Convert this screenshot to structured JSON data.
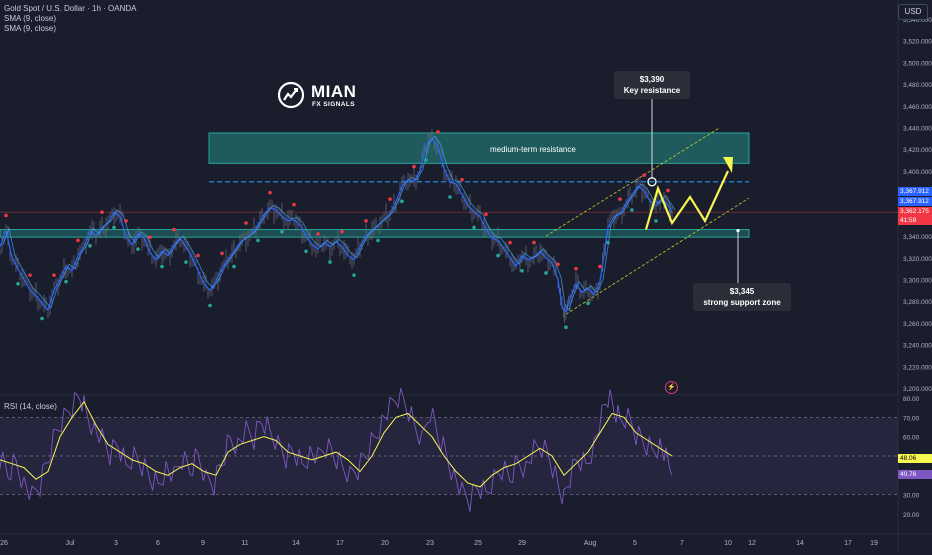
{
  "header": {
    "symbol_line": "Gold Spot / U.S. Dollar · 1h · OANDA",
    "indicators": [
      "SMA (9, close)",
      "SMA (9, close)"
    ]
  },
  "currency_button": "USD",
  "watermark": {
    "title": "MIAN",
    "subtitle": "FX SIGNALS"
  },
  "annotations": {
    "resistance_price": "$3,390",
    "resistance_label": "Key resistance",
    "zone_label": "medium-term resistance",
    "support_price": "$3,345",
    "support_label": "strong support zone"
  },
  "price_tags": [
    {
      "text": "3,367.912",
      "bg": "#2962ff",
      "fg": "#ffffff"
    },
    {
      "text": "3,367.912",
      "bg": "#2962ff",
      "fg": "#ffffff"
    },
    {
      "text": "3,362.175",
      "bg": "#f23645",
      "fg": "#ffffff"
    },
    {
      "text": "41:59",
      "bg": "#f23645",
      "fg": "#ffffff"
    }
  ],
  "rsi_tags": [
    {
      "text": "48.06",
      "bg": "#f7f752",
      "fg": "#000000"
    },
    {
      "text": "40.76",
      "bg": "#7e57c2",
      "fg": "#ffffff"
    }
  ],
  "rsi_label": "RSI (14, close)",
  "colors": {
    "background": "#1a1e2c",
    "zone_fill": "#26a69a",
    "dashed_line": "#2196f3",
    "projection": "#f7f752",
    "sma_blue": "#2962ff",
    "rsi_line": "#7e57c2",
    "rsi_ma": "#f7f752"
  },
  "chart_data": [
    {
      "type": "line",
      "title": "Gold Spot / U.S. Dollar · 1h · OANDA",
      "x_ticks": [
        "26",
        "Jul",
        "3",
        "6",
        "9",
        "11",
        "14",
        "17",
        "20",
        "23",
        "25",
        "29",
        "Aug",
        "5",
        "7",
        "10",
        "12",
        "14",
        "17",
        "19"
      ],
      "y_ticks": [
        "3,540.000",
        "3,520.000",
        "3,500.000",
        "3,480.000",
        "3,460.000",
        "3,440.000",
        "3,420.000",
        "3,400.000",
        "3,380.000",
        "3,360.000",
        "3,340.000",
        "3,320.000",
        "3,300.000",
        "3,280.000",
        "3,260.000",
        "3,240.000",
        "3,220.000",
        "3,200.000"
      ],
      "ylim": [
        3190,
        3550
      ],
      "price_series": {
        "name": "XAUUSD 1h",
        "points": [
          [
            0,
            3330
          ],
          [
            6,
            3345
          ],
          [
            12,
            3320
          ],
          [
            18,
            3310
          ],
          [
            24,
            3300
          ],
          [
            30,
            3290
          ],
          [
            36,
            3285
          ],
          [
            42,
            3278
          ],
          [
            48,
            3272
          ],
          [
            54,
            3290
          ],
          [
            60,
            3300
          ],
          [
            66,
            3312
          ],
          [
            72,
            3308
          ],
          [
            78,
            3322
          ],
          [
            84,
            3330
          ],
          [
            90,
            3345
          ],
          [
            96,
            3340
          ],
          [
            102,
            3348
          ],
          [
            108,
            3352
          ],
          [
            114,
            3362
          ],
          [
            120,
            3358
          ],
          [
            126,
            3340
          ],
          [
            132,
            3332
          ],
          [
            138,
            3342
          ],
          [
            144,
            3338
          ],
          [
            150,
            3325
          ],
          [
            156,
            3318
          ],
          [
            162,
            3326
          ],
          [
            168,
            3322
          ],
          [
            174,
            3332
          ],
          [
            180,
            3338
          ],
          [
            186,
            3330
          ],
          [
            192,
            3320
          ],
          [
            198,
            3308
          ],
          [
            204,
            3296
          ],
          [
            210,
            3290
          ],
          [
            216,
            3298
          ],
          [
            222,
            3310
          ],
          [
            228,
            3318
          ],
          [
            234,
            3326
          ],
          [
            240,
            3334
          ],
          [
            246,
            3338
          ],
          [
            252,
            3342
          ],
          [
            258,
            3350
          ],
          [
            264,
            3360
          ],
          [
            270,
            3366
          ],
          [
            276,
            3364
          ],
          [
            282,
            3358
          ],
          [
            288,
            3354
          ],
          [
            294,
            3355
          ],
          [
            300,
            3350
          ],
          [
            306,
            3340
          ],
          [
            312,
            3332
          ],
          [
            318,
            3328
          ],
          [
            324,
            3334
          ],
          [
            330,
            3330
          ],
          [
            336,
            3335
          ],
          [
            342,
            3330
          ],
          [
            348,
            3322
          ],
          [
            354,
            3318
          ],
          [
            360,
            3330
          ],
          [
            366,
            3340
          ],
          [
            372,
            3345
          ],
          [
            378,
            3350
          ],
          [
            384,
            3355
          ],
          [
            390,
            3360
          ],
          [
            396,
            3372
          ],
          [
            402,
            3386
          ],
          [
            408,
            3392
          ],
          [
            414,
            3390
          ],
          [
            420,
            3400
          ],
          [
            426,
            3424
          ],
          [
            432,
            3430
          ],
          [
            438,
            3422
          ],
          [
            444,
            3402
          ],
          [
            450,
            3390
          ],
          [
            456,
            3388
          ],
          [
            462,
            3378
          ],
          [
            468,
            3368
          ],
          [
            474,
            3362
          ],
          [
            480,
            3358
          ],
          [
            486,
            3346
          ],
          [
            492,
            3338
          ],
          [
            498,
            3336
          ],
          [
            504,
            3328
          ],
          [
            510,
            3320
          ],
          [
            516,
            3312
          ],
          [
            522,
            3322
          ],
          [
            528,
            3318
          ],
          [
            534,
            3320
          ],
          [
            540,
            3326
          ],
          [
            546,
            3320
          ],
          [
            552,
            3315
          ],
          [
            558,
            3300
          ],
          [
            562,
            3275
          ],
          [
            566,
            3270
          ],
          [
            570,
            3282
          ],
          [
            576,
            3296
          ],
          [
            582,
            3288
          ],
          [
            588,
            3292
          ],
          [
            594,
            3286
          ],
          [
            600,
            3298
          ],
          [
            604,
            3322
          ],
          [
            608,
            3348
          ],
          [
            614,
            3358
          ],
          [
            620,
            3360
          ],
          [
            626,
            3370
          ],
          [
            632,
            3378
          ],
          [
            638,
            3386
          ],
          [
            644,
            3382
          ],
          [
            650,
            3372
          ],
          [
            656,
            3368
          ],
          [
            662,
            3375
          ],
          [
            668,
            3368
          ],
          [
            672,
            3362
          ]
        ]
      },
      "projection": [
        [
          646,
          3346
        ],
        [
          658,
          3384
        ],
        [
          672,
          3352
        ],
        [
          690,
          3376
        ],
        [
          705,
          3354
        ],
        [
          728,
          3400
        ]
      ],
      "levels": {
        "key_resistance": 3390,
        "support": 3345,
        "zone": [
          3407,
          3435
        ],
        "support_band": [
          3339,
          3346
        ]
      }
    },
    {
      "type": "line",
      "title": "RSI (14, close)",
      "y_ticks": [
        "80.00",
        "70.00",
        "60.00",
        "50.00",
        "40.00",
        "30.00",
        "20.00"
      ],
      "ylim": [
        15,
        85
      ],
      "bands": [
        30,
        50,
        70
      ],
      "rsi_ma": [
        [
          0,
          48
        ],
        [
          12,
          46
        ],
        [
          24,
          44
        ],
        [
          36,
          38
        ],
        [
          48,
          42
        ],
        [
          60,
          60
        ],
        [
          72,
          70
        ],
        [
          84,
          78
        ],
        [
          96,
          66
        ],
        [
          108,
          56
        ],
        [
          120,
          52
        ],
        [
          132,
          48
        ],
        [
          144,
          46
        ],
        [
          156,
          42
        ],
        [
          168,
          40
        ],
        [
          180,
          44
        ],
        [
          192,
          46
        ],
        [
          204,
          42
        ],
        [
          216,
          40
        ],
        [
          228,
          52
        ],
        [
          240,
          56
        ],
        [
          252,
          58
        ],
        [
          264,
          60
        ],
        [
          276,
          58
        ],
        [
          288,
          52
        ],
        [
          300,
          50
        ],
        [
          312,
          48
        ],
        [
          324,
          50
        ],
        [
          336,
          52
        ],
        [
          348,
          48
        ],
        [
          360,
          42
        ],
        [
          372,
          50
        ],
        [
          384,
          62
        ],
        [
          396,
          70
        ],
        [
          408,
          72
        ],
        [
          420,
          66
        ],
        [
          432,
          60
        ],
        [
          444,
          50
        ],
        [
          456,
          42
        ],
        [
          468,
          36
        ],
        [
          480,
          34
        ],
        [
          492,
          40
        ],
        [
          504,
          44
        ],
        [
          516,
          46
        ],
        [
          528,
          50
        ],
        [
          540,
          54
        ],
        [
          552,
          50
        ],
        [
          564,
          40
        ],
        [
          576,
          46
        ],
        [
          588,
          52
        ],
        [
          600,
          62
        ],
        [
          612,
          72
        ],
        [
          624,
          70
        ],
        [
          636,
          62
        ],
        [
          648,
          58
        ],
        [
          660,
          54
        ],
        [
          672,
          50
        ]
      ],
      "rsi_line": [
        [
          0,
          50
        ],
        [
          8,
          42
        ],
        [
          16,
          48
        ],
        [
          24,
          36
        ],
        [
          32,
          28
        ],
        [
          40,
          34
        ],
        [
          48,
          48
        ],
        [
          56,
          62
        ],
        [
          64,
          70
        ],
        [
          72,
          76
        ],
        [
          80,
          82
        ],
        [
          86,
          74
        ],
        [
          94,
          64
        ],
        [
          102,
          58
        ],
        [
          110,
          50
        ],
        [
          118,
          56
        ],
        [
          126,
          44
        ],
        [
          134,
          50
        ],
        [
          142,
          46
        ],
        [
          150,
          40
        ],
        [
          158,
          36
        ],
        [
          166,
          44
        ],
        [
          174,
          38
        ],
        [
          182,
          48
        ],
        [
          190,
          42
        ],
        [
          198,
          50
        ],
        [
          206,
          38
        ],
        [
          214,
          36
        ],
        [
          222,
          48
        ],
        [
          230,
          60
        ],
        [
          238,
          56
        ],
        [
          246,
          62
        ],
        [
          254,
          58
        ],
        [
          262,
          68
        ],
        [
          270,
          62
        ],
        [
          278,
          56
        ],
        [
          286,
          50
        ],
        [
          294,
          54
        ],
        [
          302,
          46
        ],
        [
          310,
          52
        ],
        [
          318,
          48
        ],
        [
          326,
          54
        ],
        [
          334,
          50
        ],
        [
          342,
          44
        ],
        [
          350,
          40
        ],
        [
          358,
          44
        ],
        [
          366,
          52
        ],
        [
          374,
          60
        ],
        [
          382,
          68
        ],
        [
          390,
          74
        ],
        [
          398,
          80
        ],
        [
          406,
          76
        ],
        [
          414,
          66
        ],
        [
          422,
          58
        ],
        [
          430,
          74
        ],
        [
          438,
          62
        ],
        [
          446,
          52
        ],
        [
          454,
          40
        ],
        [
          462,
          30
        ],
        [
          470,
          26
        ],
        [
          478,
          34
        ],
        [
          486,
          30
        ],
        [
          494,
          38
        ],
        [
          502,
          44
        ],
        [
          510,
          40
        ],
        [
          518,
          48
        ],
        [
          526,
          44
        ],
        [
          534,
          52
        ],
        [
          542,
          54
        ],
        [
          550,
          48
        ],
        [
          558,
          34
        ],
        [
          564,
          28
        ],
        [
          570,
          40
        ],
        [
          578,
          50
        ],
        [
          586,
          46
        ],
        [
          594,
          56
        ],
        [
          602,
          70
        ],
        [
          608,
          80
        ],
        [
          614,
          74
        ],
        [
          620,
          68
        ],
        [
          628,
          70
        ],
        [
          636,
          62
        ],
        [
          644,
          58
        ],
        [
          652,
          54
        ],
        [
          660,
          56
        ],
        [
          666,
          48
        ],
        [
          672,
          40
        ]
      ]
    }
  ]
}
